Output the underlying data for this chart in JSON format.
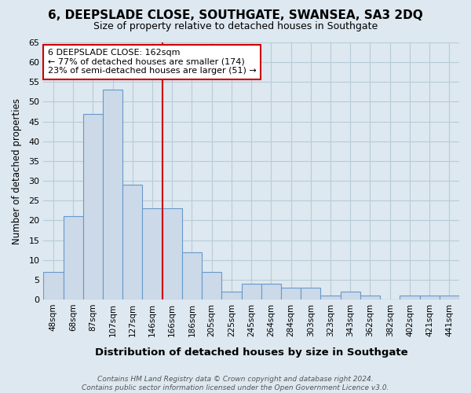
{
  "title": "6, DEEPSLADE CLOSE, SOUTHGATE, SWANSEA, SA3 2DQ",
  "subtitle": "Size of property relative to detached houses in Southgate",
  "xlabel": "Distribution of detached houses by size in Southgate",
  "ylabel": "Number of detached properties",
  "footnote": "Contains HM Land Registry data © Crown copyright and database right 2024.\nContains public sector information licensed under the Open Government Licence v3.0.",
  "bins": [
    "48sqm",
    "68sqm",
    "87sqm",
    "107sqm",
    "127sqm",
    "146sqm",
    "166sqm",
    "186sqm",
    "205sqm",
    "225sqm",
    "245sqm",
    "264sqm",
    "284sqm",
    "303sqm",
    "323sqm",
    "343sqm",
    "362sqm",
    "382sqm",
    "402sqm",
    "421sqm",
    "441sqm"
  ],
  "values": [
    7,
    21,
    47,
    53,
    29,
    23,
    23,
    12,
    7,
    2,
    4,
    4,
    3,
    3,
    1,
    2,
    1,
    0,
    1,
    1,
    1
  ],
  "bar_color": "#ccd9e8",
  "bar_edge_color": "#6699cc",
  "vline_x_index": 6,
  "vline_color": "#cc0000",
  "annotation_text": "6 DEEPSLADE CLOSE: 162sqm\n← 77% of detached houses are smaller (174)\n23% of semi-detached houses are larger (51) →",
  "annotation_box_color": "#ffffff",
  "annotation_border_color": "#cc0000",
  "ylim": [
    0,
    65
  ],
  "yticks": [
    0,
    5,
    10,
    15,
    20,
    25,
    30,
    35,
    40,
    45,
    50,
    55,
    60,
    65
  ],
  "plot_bg_color": "#dde8f0",
  "fig_bg_color": "#dde8f0",
  "grid_color": "#b8ccd8",
  "title_fontsize": 11,
  "subtitle_fontsize": 9
}
